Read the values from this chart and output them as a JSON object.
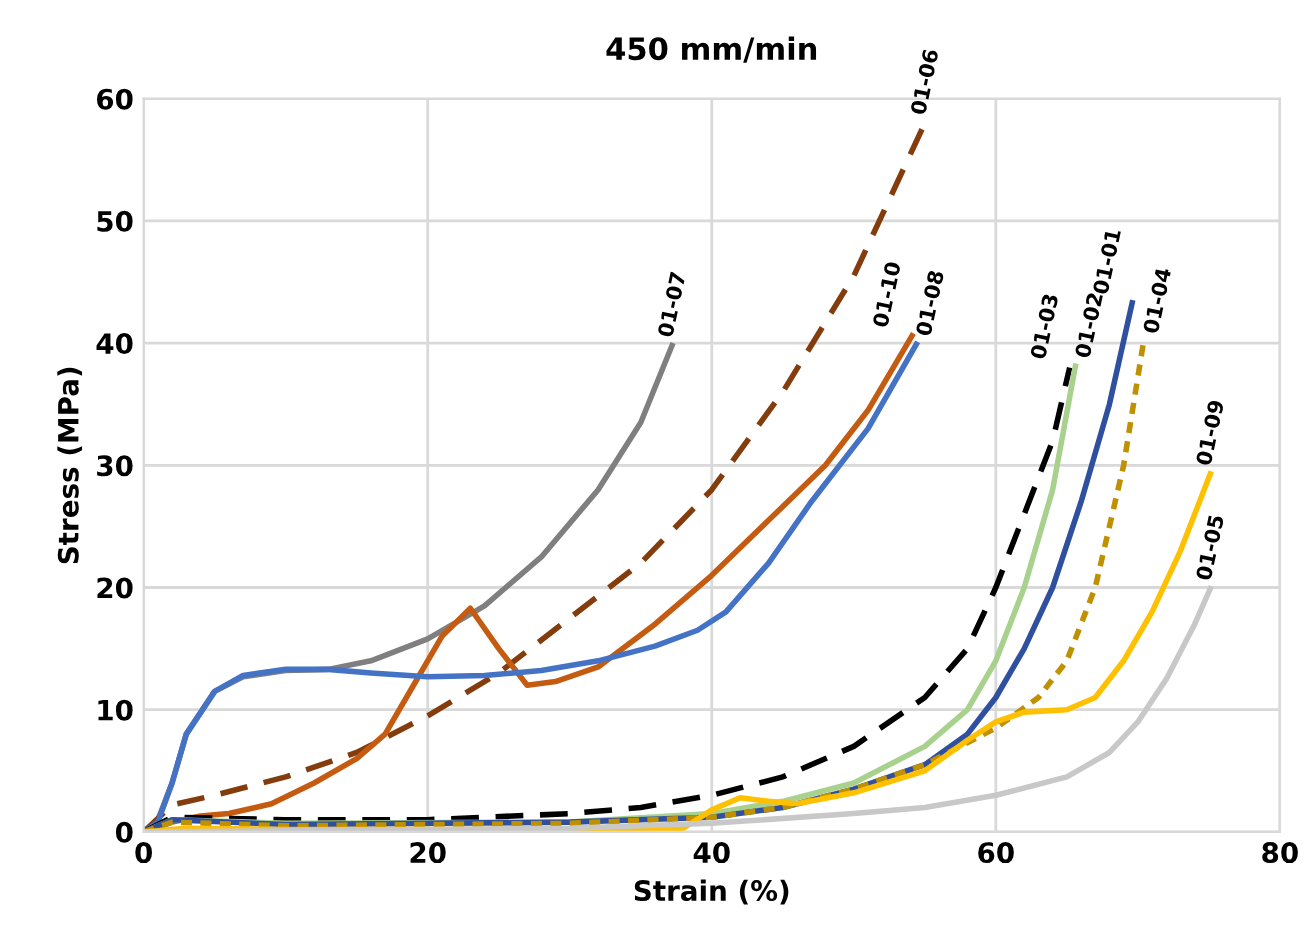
{
  "chart_data": {
    "type": "line",
    "title": "450 mm/min",
    "xlabel": "Strain (%)",
    "ylabel": "Stress (MPa)",
    "xlim": [
      0,
      80
    ],
    "xticks": [
      0,
      20,
      40,
      60,
      80
    ],
    "ylim": [
      0,
      60
    ],
    "yticks": [
      0,
      10,
      20,
      30,
      40,
      50,
      60
    ],
    "grid": true,
    "legend": false,
    "marker": "none",
    "series": [
      {
        "name": "01-07",
        "color": "#7f7f7f",
        "line_style": "solid",
        "x": [
          0,
          1,
          2,
          3,
          5,
          7,
          10,
          13,
          16,
          20,
          24,
          28,
          32,
          35,
          37.2
        ],
        "values": [
          0,
          1,
          4,
          8,
          11.5,
          12.7,
          13.2,
          13.3,
          14,
          15.8,
          18.5,
          22.5,
          28,
          33.5,
          39.8
        ]
      },
      {
        "name": "01-06",
        "color": "#843c0c",
        "line_style": "dashed",
        "x": [
          0,
          2,
          5,
          10,
          15,
          20,
          25,
          30,
          35,
          40,
          45,
          50,
          55
        ],
        "values": [
          0,
          2.2,
          3,
          4.5,
          6.5,
          9.5,
          13,
          17.5,
          22,
          28,
          36,
          45.5,
          58
        ]
      },
      {
        "name": "01-10",
        "color": "#c55a11",
        "line_style": "solid",
        "x": [
          0,
          2,
          4,
          6,
          9,
          12,
          15,
          17,
          19,
          21,
          23,
          25,
          27,
          29,
          32,
          36,
          40,
          44,
          48,
          51,
          54.1
        ],
        "values": [
          0,
          0.8,
          1.3,
          1.5,
          2.3,
          4,
          6,
          8,
          12,
          16,
          18.3,
          15,
          12,
          12.3,
          13.5,
          17,
          21,
          25.5,
          30,
          34.5,
          40.6
        ]
      },
      {
        "name": "01-08",
        "color": "#4472c4",
        "line_style": "solid",
        "x": [
          0,
          1,
          2,
          3,
          5,
          7,
          10,
          13,
          16,
          20,
          24,
          28,
          32,
          36,
          39,
          41,
          44,
          47,
          51,
          54.4
        ],
        "values": [
          0,
          0.8,
          4,
          8,
          11.5,
          12.8,
          13.3,
          13.3,
          13,
          12.7,
          12.8,
          13.2,
          14,
          15.2,
          16.5,
          18,
          22,
          27,
          33,
          39.9
        ]
      },
      {
        "name": "01-03",
        "color": "#000000",
        "line_style": "dashed",
        "x": [
          0,
          2,
          10,
          20,
          30,
          35,
          40,
          45,
          50,
          55,
          58,
          60,
          62,
          64,
          65.2
        ],
        "values": [
          0,
          1.2,
          1,
          1,
          1.5,
          2,
          3,
          4.5,
          7,
          11,
          15,
          20,
          26,
          32,
          38
        ]
      },
      {
        "name": "01-02",
        "color": "#a9d18e",
        "line_style": "solid",
        "x": [
          0,
          2,
          10,
          30,
          40,
          45,
          50,
          55,
          58,
          60,
          62,
          64,
          65.6
        ],
        "values": [
          0,
          1,
          0.7,
          0.8,
          1.5,
          2.5,
          4,
          7,
          10,
          14,
          20,
          28,
          38.1
        ]
      },
      {
        "name": "01-01",
        "color": "#2f4f9f",
        "line_style": "solid",
        "x": [
          0,
          2,
          10,
          30,
          40,
          45,
          50,
          55,
          58,
          60,
          62,
          64,
          66,
          68,
          69.6
        ],
        "values": [
          0,
          1,
          0.6,
          0.8,
          1.2,
          2,
          3.5,
          5.5,
          8,
          11,
          15,
          20,
          27,
          35,
          43.3
        ]
      },
      {
        "name": "01-04",
        "color": "#bf9000",
        "line_style": "dotted",
        "x": [
          0,
          2,
          10,
          30,
          40,
          45,
          50,
          55,
          60,
          63,
          65,
          67,
          69,
          70.4
        ],
        "values": [
          0,
          0.8,
          0.5,
          0.7,
          1.2,
          2,
          3.5,
          5.5,
          8.5,
          11,
          14,
          20,
          30,
          40.1
        ]
      },
      {
        "name": "01-09",
        "color": "#ffc000",
        "line_style": "solid",
        "x": [
          0,
          3,
          10,
          30,
          38,
          40,
          42,
          44,
          46,
          50,
          55,
          58,
          60,
          62,
          65,
          67,
          69,
          71,
          73,
          75.1
        ],
        "values": [
          0,
          0.3,
          0.2,
          0.2,
          0.3,
          1.8,
          2.8,
          2.5,
          2.3,
          3.2,
          5,
          7.5,
          9,
          9.8,
          10,
          11,
          14,
          18,
          23,
          29.3
        ]
      },
      {
        "name": "01-05",
        "color": "#c8c8c8",
        "line_style": "solid",
        "x": [
          0,
          10,
          30,
          40,
          50,
          55,
          60,
          65,
          68,
          70,
          72,
          74,
          75.1
        ],
        "values": [
          0,
          0.1,
          0.3,
          0.7,
          1.5,
          2,
          3,
          4.5,
          6.5,
          9,
          12.5,
          17,
          19.9
        ]
      }
    ]
  }
}
